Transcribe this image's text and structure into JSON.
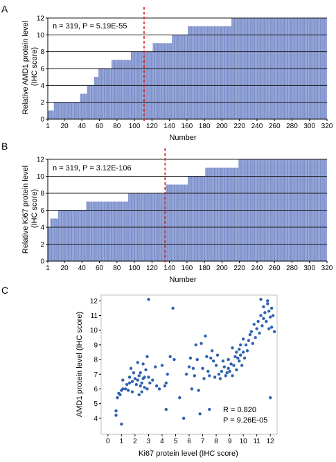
{
  "chart_data": [
    {
      "type": "bar",
      "panel_label": "A",
      "annotation": "n = 319, P = 5.19E-55",
      "xlabel": "Number",
      "ylabel_line1": "Relative AMD1 protein level",
      "ylabel_line2": "(IHC score)",
      "xlim": [
        1,
        320
      ],
      "ylim": [
        0,
        12
      ],
      "x_ticks": [
        1,
        20,
        40,
        60,
        80,
        100,
        120,
        140,
        160,
        180,
        200,
        220,
        240,
        260,
        280,
        300,
        320
      ],
      "y_ticks": [
        0,
        2,
        4,
        6,
        8,
        10,
        12
      ],
      "grid": "horizontal at even values",
      "bar_color": "#7f93cf",
      "cutoff_x": 111,
      "cutoff_color": "#d9221c",
      "n_bars": 319,
      "runs": [
        [
          1,
          7,
          1
        ],
        [
          8,
          14,
          2
        ],
        [
          15,
          37,
          2
        ],
        [
          38,
          45,
          3
        ],
        [
          46,
          53,
          4
        ],
        [
          54,
          58,
          5
        ],
        [
          59,
          66,
          6
        ],
        [
          67,
          73,
          6
        ],
        [
          74,
          82,
          7
        ],
        [
          83,
          95,
          7
        ],
        [
          96,
          111,
          8
        ],
        [
          112,
          120,
          8
        ],
        [
          121,
          142,
          9
        ],
        [
          143,
          160,
          10
        ],
        [
          161,
          185,
          11
        ],
        [
          186,
          210,
          11
        ],
        [
          211,
          319,
          12
        ]
      ]
    },
    {
      "type": "bar",
      "panel_label": "B",
      "annotation": "n = 319, P = 3.12E-106",
      "xlabel": "Number",
      "ylabel_line1": "Relative Ki67 protein level",
      "ylabel_line2": "(IHC score)",
      "xlim": [
        1,
        320
      ],
      "ylim": [
        0,
        12
      ],
      "x_ticks": [
        1,
        20,
        40,
        60,
        80,
        100,
        120,
        140,
        160,
        180,
        200,
        220,
        240,
        260,
        280,
        300,
        320
      ],
      "y_ticks": [
        0,
        2,
        4,
        6,
        8,
        10,
        12
      ],
      "grid": "horizontal at even values",
      "bar_color": "#7f93cf",
      "cutoff_x": 135,
      "cutoff_color": "#d9221c",
      "n_bars": 319,
      "runs": [
        [
          1,
          3,
          4
        ],
        [
          4,
          7,
          5
        ],
        [
          8,
          12,
          5
        ],
        [
          13,
          44,
          6
        ],
        [
          45,
          92,
          7
        ],
        [
          93,
          135,
          8
        ],
        [
          136,
          150,
          9
        ],
        [
          151,
          160,
          9
        ],
        [
          161,
          180,
          10
        ],
        [
          181,
          218,
          11
        ],
        [
          219,
          319,
          12
        ]
      ]
    },
    {
      "type": "scatter",
      "panel_label": "C",
      "xlabel": "Ki67 protein level (IHC score)",
      "ylabel": "AMD1 protein level (IHC score)",
      "xlim": [
        -0.4,
        12.4
      ],
      "ylim": [
        3.0,
        12.3
      ],
      "x_ticks": [
        0,
        1,
        2,
        3,
        4,
        5,
        6,
        7,
        8,
        9,
        10,
        11,
        12
      ],
      "y_ticks": [
        4,
        5,
        6,
        7,
        8,
        9,
        10,
        11,
        12
      ],
      "r_text": "R = 0.820",
      "p_text": "P = 9.26E-05",
      "point_color": "#2f62b2",
      "points": [
        [
          0.6,
          4.2
        ],
        [
          0.6,
          4.5
        ],
        [
          0.7,
          5.4
        ],
        [
          0.8,
          5.7
        ],
        [
          0.9,
          5.6
        ],
        [
          1.0,
          5.9
        ],
        [
          1.1,
          6.0
        ],
        [
          1.0,
          3.6
        ],
        [
          1.1,
          6.6
        ],
        [
          1.3,
          6.0
        ],
        [
          1.4,
          6.3
        ],
        [
          1.5,
          5.9
        ],
        [
          1.6,
          6.4
        ],
        [
          1.6,
          6.8
        ],
        [
          1.7,
          7.4
        ],
        [
          1.8,
          6.5
        ],
        [
          1.8,
          5.8
        ],
        [
          1.9,
          7.1
        ],
        [
          2.0,
          6.7
        ],
        [
          2.1,
          6.3
        ],
        [
          2.2,
          6.6
        ],
        [
          2.2,
          7.8
        ],
        [
          2.3,
          5.6
        ],
        [
          2.3,
          6.9
        ],
        [
          2.4,
          6.2
        ],
        [
          2.4,
          7.1
        ],
        [
          2.5,
          6.4
        ],
        [
          2.5,
          5.8
        ],
        [
          2.6,
          6.7
        ],
        [
          2.6,
          7.7
        ],
        [
          2.7,
          6.1
        ],
        [
          2.7,
          6.8
        ],
        [
          2.8,
          7.3
        ],
        [
          2.9,
          6.0
        ],
        [
          2.9,
          8.2
        ],
        [
          3.0,
          6.8
        ],
        [
          3.0,
          12.1
        ],
        [
          3.1,
          6.4
        ],
        [
          3.3,
          6.6
        ],
        [
          3.5,
          7.5
        ],
        [
          3.6,
          6.2
        ],
        [
          3.8,
          6.0
        ],
        [
          4.0,
          7.6
        ],
        [
          4.2,
          6.2
        ],
        [
          4.3,
          6.4
        ],
        [
          4.3,
          4.6
        ],
        [
          4.4,
          7.0
        ],
        [
          4.6,
          8.2
        ],
        [
          4.9,
          8.0
        ],
        [
          4.8,
          11.5
        ],
        [
          5.3,
          5.4
        ],
        [
          5.6,
          4.0
        ],
        [
          5.8,
          7.0
        ],
        [
          6.0,
          7.5
        ],
        [
          6.1,
          8.1
        ],
        [
          6.2,
          6.0
        ],
        [
          6.3,
          7.4
        ],
        [
          6.4,
          6.9
        ],
        [
          6.5,
          9.0
        ],
        [
          6.6,
          8.0
        ],
        [
          6.7,
          5.9
        ],
        [
          6.8,
          4.3
        ],
        [
          6.9,
          9.1
        ],
        [
          7.0,
          7.4
        ],
        [
          7.1,
          6.7
        ],
        [
          7.2,
          9.6
        ],
        [
          7.3,
          8.2
        ],
        [
          7.4,
          7.2
        ],
        [
          7.5,
          6.9
        ],
        [
          7.5,
          4.6
        ],
        [
          7.6,
          8.1
        ],
        [
          7.7,
          8.6
        ],
        [
          7.8,
          7.9
        ],
        [
          7.9,
          6.8
        ],
        [
          8.0,
          7.6
        ],
        [
          8.1,
          8.3
        ],
        [
          8.2,
          7.0
        ],
        [
          8.3,
          6.7
        ],
        [
          8.4,
          7.2
        ],
        [
          8.5,
          7.9
        ],
        [
          8.6,
          7.5
        ],
        [
          8.7,
          6.9
        ],
        [
          8.8,
          7.1
        ],
        [
          8.9,
          7.4
        ],
        [
          8.9,
          8.0
        ],
        [
          9.0,
          7.2
        ],
        [
          9.1,
          7.7
        ],
        [
          9.2,
          6.9
        ],
        [
          9.3,
          7.6
        ],
        [
          9.4,
          8.2
        ],
        [
          9.5,
          8.5
        ],
        [
          9.5,
          7.3
        ],
        [
          9.6,
          8.1
        ],
        [
          9.7,
          7.9
        ],
        [
          9.7,
          8.7
        ],
        [
          9.8,
          8.3
        ],
        [
          9.9,
          7.6
        ],
        [
          10.0,
          8.5
        ],
        [
          10.0,
          9.4
        ],
        [
          10.1,
          8.1
        ],
        [
          10.2,
          9.0
        ],
        [
          10.3,
          8.6
        ],
        [
          10.4,
          9.3
        ],
        [
          10.5,
          9.7
        ],
        [
          10.6,
          9.9
        ],
        [
          10.7,
          9.1
        ],
        [
          10.8,
          10.4
        ],
        [
          10.9,
          9.5
        ],
        [
          11.0,
          10.1
        ],
        [
          11.1,
          10.6
        ],
        [
          11.2,
          9.8
        ],
        [
          11.3,
          11.0
        ],
        [
          11.4,
          10.3
        ],
        [
          11.5,
          11.6
        ],
        [
          11.5,
          10.8
        ],
        [
          11.6,
          11.2
        ],
        [
          11.7,
          10.6
        ],
        [
          11.8,
          11.8
        ],
        [
          11.9,
          11.3
        ],
        [
          11.9,
          10.1
        ],
        [
          12.0,
          10.9
        ],
        [
          12.1,
          11.5
        ],
        [
          12.1,
          10.2
        ],
        [
          12.2,
          11.0
        ],
        [
          12.3,
          9.9
        ],
        [
          12.0,
          5.4
        ],
        [
          11.3,
          12.1
        ],
        [
          11.8,
          12.0
        ],
        [
          9.8,
          9.0
        ],
        [
          9.2,
          8.8
        ]
      ]
    }
  ]
}
